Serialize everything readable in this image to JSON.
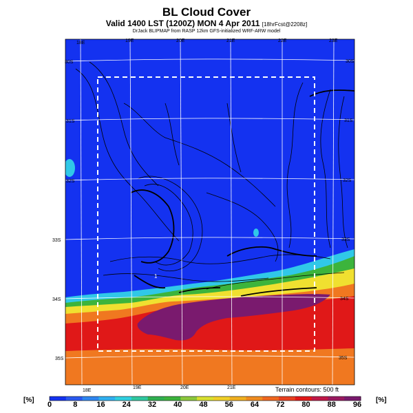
{
  "header": {
    "title": "BL Cloud Cover",
    "subtitle_main": "Valid 1400 LST (1200Z) MON 4 Apr 2011",
    "subtitle_small": "[18hrFcst@2208z]",
    "credit": "DrJack BLIPMAP from RASP 12km GFS-initialized WRF-ARW model"
  },
  "map": {
    "lon_labels_top": [
      "18E",
      "19E",
      "20E",
      "21E",
      "22E",
      "23E"
    ],
    "lon_labels_bottom": [
      "18E",
      "19E",
      "20E",
      "21E"
    ],
    "lat_labels_left": [
      "30S",
      "31S",
      "32S",
      "33S",
      "34S",
      "35S"
    ],
    "lat_labels_right": [
      "30S",
      "31S",
      "32S",
      "33S",
      "34S",
      "35S"
    ],
    "terrain_note": "Terrain contours: 500 ft",
    "marker": "1",
    "colors": {
      "clear": "#1432f0",
      "ocean_band_cyan": "#30c8e8",
      "band_green": "#3cb43c",
      "band_yellow": "#f0e030",
      "band_orange": "#f07820",
      "band_red": "#e01818",
      "band_purple": "#7a1a6e",
      "grid": "#ffffff",
      "dashed_box": "#ffffff",
      "contour": "#000000"
    }
  },
  "colorbar": {
    "unit_left": "[%]",
    "unit_right": "[%]",
    "ticks": [
      "0",
      "8",
      "16",
      "24",
      "32",
      "40",
      "48",
      "56",
      "64",
      "72",
      "80",
      "88",
      "96"
    ],
    "colors": [
      "#1432f0",
      "#2a5af0",
      "#2f86f0",
      "#30b0f0",
      "#30d0e0",
      "#30c8a0",
      "#30b050",
      "#3cb43c",
      "#8cc83c",
      "#d8e030",
      "#f0d028",
      "#f0b020",
      "#f08c20",
      "#f06820",
      "#e84020",
      "#e01818",
      "#c01848",
      "#9a1a60",
      "#7a1a6e"
    ]
  }
}
